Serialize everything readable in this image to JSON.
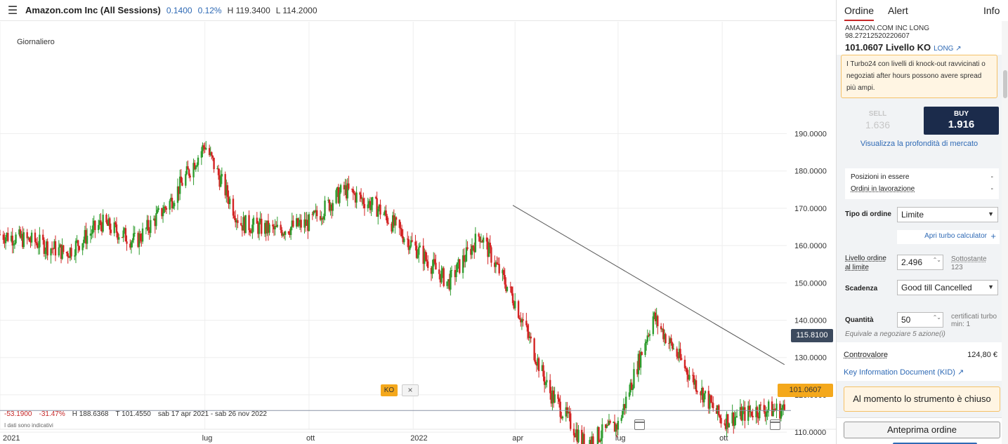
{
  "header": {
    "menu_icon": "hamburger-menu-icon",
    "instrument": "Amazon.com Inc (All Sessions)",
    "change": "0.1400",
    "change_pct": "0.12%",
    "high": "H 119.3400",
    "low": "L 114.2000"
  },
  "chart": {
    "period": "Giornaliero",
    "stats": {
      "change": "-53.1900",
      "change_pct": "-31.47%",
      "high": "H 188.6368",
      "low": "T 101.4550",
      "range": "sab 17 apr 2021 - sab 26 nov 2022"
    },
    "disclaimer": "I dati sono indicativi",
    "last_price": "115.8100",
    "ko_level": "101.0607",
    "ko_badge": "KO",
    "ko_close": "×"
  },
  "chart_data": {
    "type": "candlestick",
    "y_ticks": [
      "190.0000",
      "180.0000",
      "170.0000",
      "160.0000",
      "150.0000",
      "140.0000",
      "130.0000",
      "120.0000",
      "110.0000"
    ],
    "y_tick_values": [
      190,
      180,
      170,
      160,
      150,
      140,
      130,
      120,
      110
    ],
    "x_ticks": [
      "2021",
      "lug",
      "ott",
      "2022",
      "apr",
      "lug",
      "ott"
    ],
    "colors": {
      "up": "#2e9c2e",
      "down": "#d32424",
      "ko": "#f4a81c",
      "trend": "#555555",
      "price_line": "#8a93a6"
    },
    "ylim": [
      101,
      195
    ],
    "last": 115.81,
    "ko": 101.0607,
    "monthly_anchors": [
      {
        "date": "2021-01",
        "price": 163
      },
      {
        "date": "2021-02",
        "price": 161
      },
      {
        "date": "2021-03",
        "price": 158
      },
      {
        "date": "2021-04",
        "price": 166
      },
      {
        "date": "2021-05",
        "price": 161
      },
      {
        "date": "2021-06",
        "price": 172
      },
      {
        "date": "2021-07",
        "price": 187
      },
      {
        "date": "2021-08",
        "price": 166
      },
      {
        "date": "2021-09",
        "price": 164
      },
      {
        "date": "2021-10",
        "price": 166
      },
      {
        "date": "2021-11",
        "price": 175
      },
      {
        "date": "2021-12",
        "price": 170
      },
      {
        "date": "2022-01",
        "price": 160
      },
      {
        "date": "2022-02",
        "price": 150
      },
      {
        "date": "2022-03",
        "price": 163
      },
      {
        "date": "2022-04",
        "price": 145
      },
      {
        "date": "2022-05",
        "price": 121
      },
      {
        "date": "2022-06",
        "price": 107
      },
      {
        "date": "2022-07",
        "price": 112
      },
      {
        "date": "2022-08",
        "price": 141
      },
      {
        "date": "2022-09",
        "price": 126
      },
      {
        "date": "2022-10",
        "price": 113
      },
      {
        "date": "2022-11",
        "price": 116
      }
    ],
    "trend_lines": [
      {
        "from": {
          "date": "2022-03-30",
          "price": 170.8
        },
        "to": {
          "date": "2022-11-25",
          "price": 128.1
        }
      },
      {
        "from": {
          "date": "2022-06-16",
          "price": 101.3
        },
        "to": {
          "date": "2022-11-25",
          "price": 106.0
        }
      }
    ]
  },
  "order_panel": {
    "tabs": [
      "Ordine",
      "Alert",
      "Info"
    ],
    "product_name": "AMAZON.COM INC LONG",
    "product_code": "98.27212520220607",
    "ko_text": "101.0607 Livello KO",
    "long_link": "LONG ↗",
    "warning": "I Turbo24 con livelli di knock-out ravvicinati o negoziati after hours possono avere spread più ampi.",
    "sell_label": "SELL",
    "sell_price": "1.636",
    "buy_label": "BUY",
    "buy_price": "1.916",
    "depth_link": "Visualizza la profondità di mercato",
    "positions_label": "Posizioni in essere",
    "positions_value": "-",
    "orders_label": "Ordini in lavorazione",
    "orders_value": "-",
    "tipo_label": "Tipo di ordine",
    "tipo_value": "Limite",
    "calc_link": "Apri turbo calculator",
    "calc_plus": "+",
    "livello_label_1": "Livello ordine",
    "livello_label_2": "al limite",
    "livello_value": "2.496",
    "sottostante_label": "Sottostante",
    "sottostante_value": "123",
    "scadenza_label": "Scadenza",
    "scadenza_value": "Good till Cancelled",
    "quantita_label": "Quantità",
    "quantita_value": "50",
    "cert_label_1": "certificati turbo",
    "cert_label_2": "min: 1",
    "equiv": "Equivale a negoziare 5 azione(i)",
    "controvalore_label": "Controvalore",
    "controvalore_value": "124,80 €",
    "kid_link": "Key Information Document (KID) ↗",
    "closed_notice": "Al momento lo strumento è chiuso",
    "preview_button": "Anteprima ordine"
  }
}
